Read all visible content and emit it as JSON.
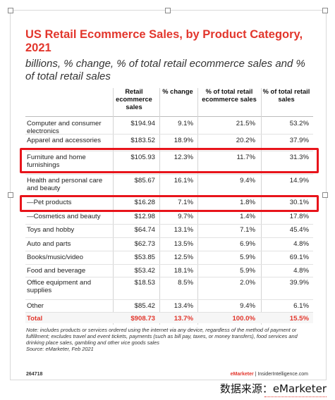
{
  "chart_data": {
    "type": "table",
    "title": "US Retail Ecommerce Sales, by Product Category, 2021",
    "subtitle": "billions, % change, % of total retail ecommerce sales and % of total retail sales",
    "columns": [
      "",
      "Retail ecommerce sales",
      "% change",
      "% of total retail ecommerce sales",
      "% of total retail sales"
    ],
    "rows": [
      {
        "category": "Computer and consumer electronics",
        "sales": "$194.94",
        "change": "9.1%",
        "share_ecom": "21.5%",
        "share_retail": "53.2%"
      },
      {
        "category": "Apparel and accessories",
        "sales": "$183.52",
        "change": "18.9%",
        "share_ecom": "20.2%",
        "share_retail": "37.9%"
      },
      {
        "category": "Furniture and home furnishings",
        "sales": "$105.93",
        "change": "12.3%",
        "share_ecom": "11.7%",
        "share_retail": "31.3%"
      },
      {
        "category": "Health and personal care and beauty",
        "sales": "$85.67",
        "change": "16.1%",
        "share_ecom": "9.4%",
        "share_retail": "14.9%"
      },
      {
        "category": "—Pet products",
        "sales": "$16.28",
        "change": "7.1%",
        "share_ecom": "1.8%",
        "share_retail": "30.1%"
      },
      {
        "category": "—Cosmetics and beauty",
        "sales": "$12.98",
        "change": "9.7%",
        "share_ecom": "1.4%",
        "share_retail": "17.8%"
      },
      {
        "category": "Toys and hobby",
        "sales": "$64.74",
        "change": "13.1%",
        "share_ecom": "7.1%",
        "share_retail": "45.4%"
      },
      {
        "category": "Auto and parts",
        "sales": "$62.73",
        "change": "13.5%",
        "share_ecom": "6.9%",
        "share_retail": "4.8%"
      },
      {
        "category": "Books/music/video",
        "sales": "$53.85",
        "change": "12.5%",
        "share_ecom": "5.9%",
        "share_retail": "69.1%"
      },
      {
        "category": "Food and beverage",
        "sales": "$53.42",
        "change": "18.1%",
        "share_ecom": "5.9%",
        "share_retail": "4.8%"
      },
      {
        "category": "Office equipment and supplies",
        "sales": "$18.53",
        "change": "8.5%",
        "share_ecom": "2.0%",
        "share_retail": "39.9%"
      },
      {
        "category": "Other",
        "sales": "$85.42",
        "change": "13.4%",
        "share_ecom": "9.4%",
        "share_retail": "6.1%"
      }
    ],
    "total": {
      "category": "Total",
      "sales": "$908.73",
      "change": "13.7%",
      "share_ecom": "100.0%",
      "share_retail": "15.5%"
    },
    "highlighted_rows": [
      "Furniture and home furnishings",
      "—Pet products"
    ],
    "note": "Note: includes products or services ordered using the internet via any device, regardless of the method of payment or fulfillment; excludes travel and event tickets, payments (such as bill pay, taxes, or money transfers), food services and drinking place sales, gambling and other vice goods sales",
    "source": "Source: eMarketer, Feb 2021",
    "figure_id": "264718",
    "brand_left": "eMarketer",
    "brand_sep": " | ",
    "brand_right": "InsiderIntelligence.com"
  },
  "watermark": "数据来源：eMarketer",
  "colors": {
    "title": "#e2362c",
    "highlight": "#e8141b",
    "total": "#e2362c"
  }
}
